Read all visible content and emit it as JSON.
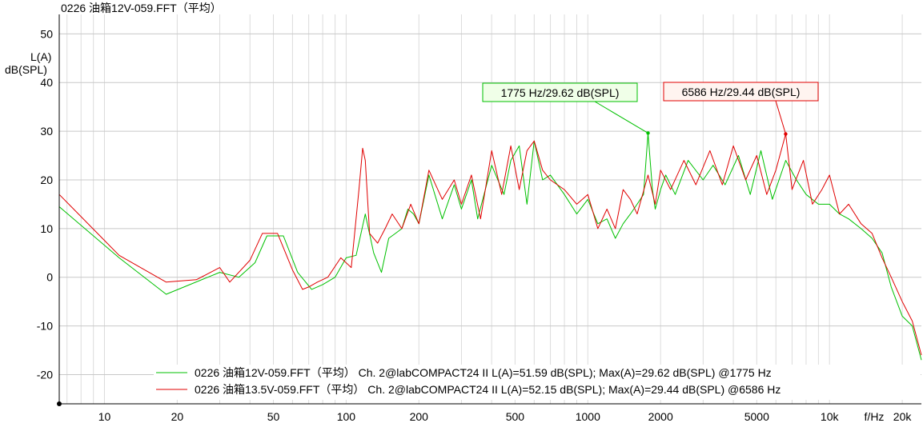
{
  "chart_data": {
    "type": "line",
    "title": "0226 油箱12V-059.FFT（平均）",
    "ylabel_line1": "L(A)",
    "ylabel_line2": "dB(SPL)",
    "xlabel": "f/Hz",
    "x_scale": "log",
    "xlim": [
      6.5,
      24000
    ],
    "ylim": [
      -26,
      54
    ],
    "x_ticks": [
      {
        "value": 10,
        "label": "10"
      },
      {
        "value": 20,
        "label": "20"
      },
      {
        "value": 50,
        "label": "50"
      },
      {
        "value": 100,
        "label": "100"
      },
      {
        "value": 200,
        "label": "200"
      },
      {
        "value": 500,
        "label": "500"
      },
      {
        "value": 1000,
        "label": "1000"
      },
      {
        "value": 2000,
        "label": "2000"
      },
      {
        "value": 5000,
        "label": "5000"
      },
      {
        "value": 10000,
        "label": "10k"
      },
      {
        "value": 20000,
        "label": "20k"
      }
    ],
    "y_ticks": [
      50,
      40,
      30,
      20,
      10,
      0,
      -10,
      -20
    ],
    "grid": true,
    "legend_position": "bottom-right",
    "series": [
      {
        "name": "0226 油箱12V-059.FFT（平均） Ch. 2@labCOMPACT24 II L(A)=51.59 dB(SPL); Max(A)=29.62 dB(SPL) @1775 Hz",
        "color": "#00c000",
        "x": [
          6.5,
          11.5,
          18,
          30,
          36,
          42,
          47,
          55,
          63,
          72,
          80,
          90,
          100,
          110,
          120,
          130,
          140,
          150,
          160,
          170,
          180,
          190,
          200,
          220,
          250,
          280,
          300,
          330,
          350,
          400,
          450,
          480,
          520,
          560,
          600,
          650,
          700,
          800,
          900,
          1000,
          1100,
          1200,
          1300,
          1400,
          1500,
          1600,
          1700,
          1775,
          1850,
          1900,
          2000,
          2100,
          2300,
          2600,
          3000,
          3300,
          3700,
          4200,
          4700,
          5200,
          5800,
          6586,
          7300,
          8000,
          9000,
          10000,
          11000,
          12000,
          13500,
          15000,
          16500,
          18000,
          20000,
          22000,
          24000
        ],
        "y": [
          14.5,
          4,
          -3.5,
          1,
          0,
          3,
          8.5,
          8.5,
          1,
          -2.5,
          -1.5,
          0,
          4,
          4.5,
          13,
          5,
          1,
          8,
          9,
          10,
          14,
          13,
          11,
          21,
          12,
          19,
          14,
          20,
          12,
          23,
          17,
          24,
          27,
          15,
          28,
          20,
          21,
          17,
          13,
          16,
          11,
          12,
          8,
          11,
          13,
          15,
          17,
          29.62,
          18,
          14,
          18,
          21,
          17,
          24,
          20,
          23,
          19,
          25,
          17,
          26,
          16,
          24,
          20,
          17,
          15,
          15,
          13,
          12,
          10,
          8,
          5,
          -2,
          -8,
          -10,
          -17
        ]
      },
      {
        "name": "0226 油箱13.5V-059.FFT（平均） Ch. 2@labCOMPACT24 II L(A)=52.15 dB(SPL); Max(A)=29.44 dB(SPL) @6586 Hz",
        "color": "#e00000",
        "x": [
          6.5,
          11.5,
          18,
          24,
          30,
          33,
          40,
          45,
          52,
          60,
          66,
          70,
          76,
          84,
          95,
          105,
          113,
          117,
          120,
          125,
          135,
          145,
          155,
          170,
          185,
          200,
          220,
          250,
          280,
          300,
          330,
          360,
          400,
          440,
          480,
          520,
          560,
          600,
          650,
          700,
          800,
          900,
          1000,
          1100,
          1200,
          1300,
          1400,
          1500,
          1600,
          1775,
          1900,
          2000,
          2200,
          2500,
          2800,
          3200,
          3600,
          4000,
          4500,
          5000,
          5500,
          6000,
          6586,
          7000,
          7800,
          8500,
          9300,
          10000,
          11000,
          12000,
          13500,
          15000,
          16500,
          18000,
          20000,
          22000,
          24000
        ],
        "y": [
          17,
          4.5,
          -1,
          -0.5,
          2,
          -1,
          3.5,
          9,
          9,
          1.5,
          -2.5,
          -2,
          -1,
          0,
          4,
          2,
          18,
          26.5,
          24,
          9,
          7,
          10,
          13,
          10,
          15,
          11,
          22,
          16,
          20,
          15,
          21,
          12,
          26,
          17,
          27,
          18,
          26,
          28,
          22,
          20,
          18,
          15,
          17,
          10,
          14,
          10,
          18,
          16,
          13,
          21,
          15,
          22,
          18,
          24,
          19,
          26,
          19,
          27,
          20,
          25,
          17,
          22,
          29.44,
          18,
          24,
          15,
          18,
          21,
          13,
          15,
          11,
          9,
          4,
          0,
          -5,
          -9,
          -16
        ]
      }
    ],
    "annotations": [
      {
        "label": "1775 Hz/29.62 dB(SPL)",
        "x": 1775,
        "y": 29.62,
        "series": 0
      },
      {
        "label": "6586 Hz/29.44 dB(SPL)",
        "x": 6586,
        "y": 29.44,
        "series": 1
      }
    ]
  }
}
